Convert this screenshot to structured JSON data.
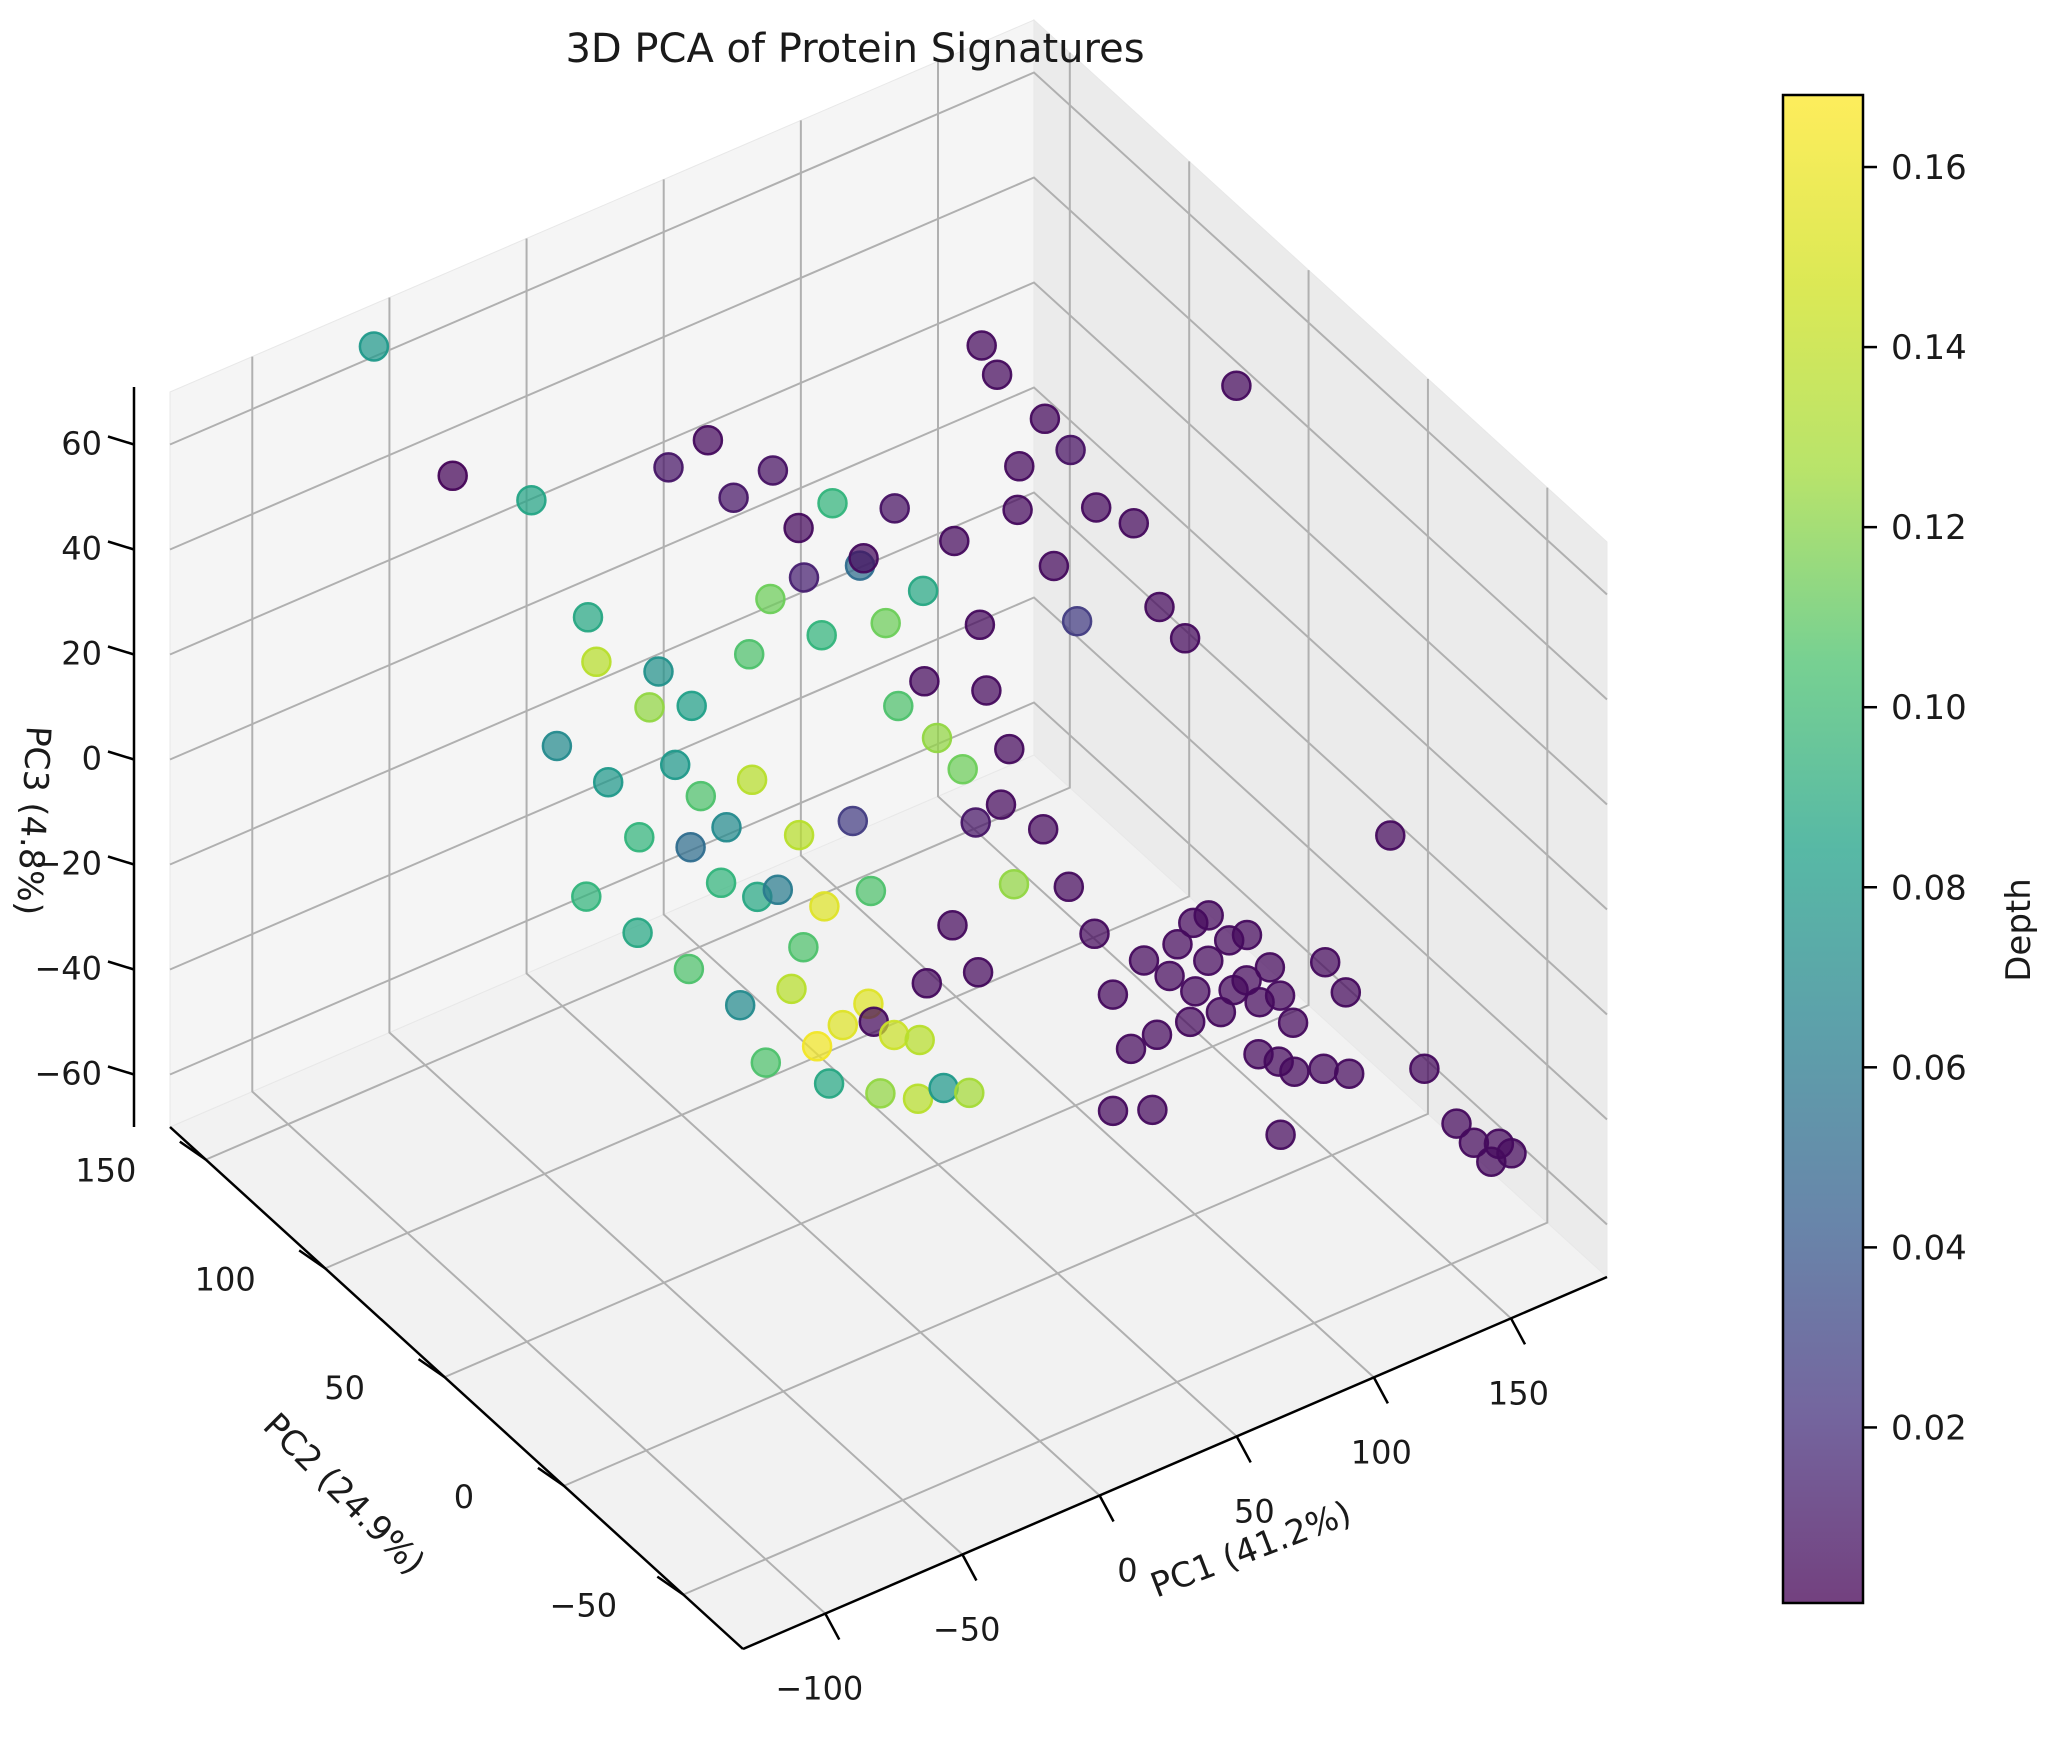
{
  "chart_data": {
    "type": "scatter3d",
    "title": "3D PCA of Protein Signatures",
    "xlabel": "PC1 (41.2%)",
    "ylabel": "PC2 (24.9%)",
    "zlabel": "PC3 (4.8%)",
    "colorbar_label": "Depth",
    "colormap": "viridis",
    "grid": true,
    "xlim": [
      -130,
      185
    ],
    "ylim": [
      -75,
      165
    ],
    "zlim": [
      -70,
      70
    ],
    "clim": [
      0.0005,
      0.168
    ],
    "x_ticks": [
      "−100",
      "−50",
      "0",
      "50",
      "100",
      "150"
    ],
    "y_ticks": [
      "−50",
      "0",
      "50",
      "100",
      "150"
    ],
    "z_ticks": [
      "−60",
      "−40",
      "−20",
      "0",
      "20",
      "40",
      "60"
    ],
    "colorbar_ticks": [
      "0.02",
      "0.04",
      "0.06",
      "0.08",
      "0.10",
      "0.12",
      "0.14",
      "0.16"
    ],
    "points": [
      {
        "x": -60,
        "y": 160,
        "z": 65,
        "c": 0.09
      },
      {
        "x": -40,
        "y": 150,
        "z": 40,
        "c": 0.002
      },
      {
        "x": -20,
        "y": 140,
        "z": 35,
        "c": 0.098
      },
      {
        "x": 5,
        "y": 145,
        "z": 5,
        "c": 0.1
      },
      {
        "x": -5,
        "y": 130,
        "z": 5,
        "c": 0.15
      },
      {
        "x": 10,
        "y": 125,
        "z": -5,
        "c": 0.14
      },
      {
        "x": 15,
        "y": 120,
        "z": -15,
        "c": 0.09
      },
      {
        "x": 20,
        "y": 115,
        "z": -20,
        "c": 0.12
      },
      {
        "x": 25,
        "y": 110,
        "z": -25,
        "c": 0.08
      },
      {
        "x": 30,
        "y": 105,
        "z": -15,
        "c": 0.15
      },
      {
        "x": 35,
        "y": 100,
        "z": -35,
        "c": 0.07
      },
      {
        "x": 40,
        "y": 95,
        "z": -45,
        "c": 0.12
      },
      {
        "x": 0,
        "y": 140,
        "z": -45,
        "c": 0.11
      },
      {
        "x": 10,
        "y": 130,
        "z": -50,
        "c": 0.1
      },
      {
        "x": 20,
        "y": 120,
        "z": -55,
        "c": 0.12
      },
      {
        "x": 30,
        "y": 110,
        "z": -60,
        "c": 0.08
      },
      {
        "x": 40,
        "y": 100,
        "z": -55,
        "c": 0.15
      },
      {
        "x": 50,
        "y": 90,
        "z": -60,
        "c": 0.16
      },
      {
        "x": 45,
        "y": 95,
        "z": -65,
        "c": 0.165
      },
      {
        "x": 55,
        "y": 85,
        "z": -55,
        "c": 0.16
      },
      {
        "x": 60,
        "y": 80,
        "z": -60,
        "c": 0.155
      },
      {
        "x": 65,
        "y": 75,
        "z": -60,
        "c": 0.15
      },
      {
        "x": 35,
        "y": 105,
        "z": -70,
        "c": 0.12
      },
      {
        "x": 45,
        "y": 90,
        "z": -70,
        "c": 0.1
      },
      {
        "x": 55,
        "y": 80,
        "z": -70,
        "c": 0.14
      },
      {
        "x": 60,
        "y": 70,
        "z": -68,
        "c": 0.15
      },
      {
        "x": 65,
        "y": 65,
        "z": -65,
        "c": 0.09
      },
      {
        "x": 70,
        "y": 60,
        "z": -65,
        "c": 0.145
      },
      {
        "x": 25,
        "y": 125,
        "z": -35,
        "c": 0.06
      },
      {
        "x": 30,
        "y": 118,
        "z": -40,
        "c": 0.11
      },
      {
        "x": 38,
        "y": 112,
        "z": -42,
        "c": 0.1
      },
      {
        "x": 48,
        "y": 106,
        "z": -30,
        "c": 0.15
      },
      {
        "x": 52,
        "y": 100,
        "z": -42,
        "c": 0.16
      },
      {
        "x": 58,
        "y": 95,
        "z": -25,
        "c": 0.03
      },
      {
        "x": 62,
        "y": 92,
        "z": -38,
        "c": 0.12
      },
      {
        "x": 15,
        "y": 135,
        "z": -35,
        "c": 0.11
      },
      {
        "x": 8,
        "y": 140,
        "z": -25,
        "c": 0.09
      },
      {
        "x": -2,
        "y": 150,
        "z": -20,
        "c": 0.08
      },
      {
        "x": 28,
        "y": 128,
        "z": -10,
        "c": 0.095
      },
      {
        "x": 22,
        "y": 135,
        "z": -5,
        "c": 0.085
      },
      {
        "x": 42,
        "y": 120,
        "z": 0,
        "c": 0.12
      },
      {
        "x": 48,
        "y": 118,
        "z": 10,
        "c": 0.13
      },
      {
        "x": 55,
        "y": 112,
        "z": 15,
        "c": 0.015
      },
      {
        "x": 58,
        "y": 108,
        "z": 5,
        "c": 0.11
      },
      {
        "x": 65,
        "y": 100,
        "z": 20,
        "c": 0.06
      },
      {
        "x": 70,
        "y": 95,
        "z": 10,
        "c": 0.13
      },
      {
        "x": 72,
        "y": 92,
        "z": -5,
        "c": 0.12
      },
      {
        "x": 78,
        "y": 88,
        "z": 0,
        "c": 0.005
      },
      {
        "x": 80,
        "y": 85,
        "z": -10,
        "c": 0.14
      },
      {
        "x": 85,
        "y": 80,
        "z": -15,
        "c": 0.13
      },
      {
        "x": 88,
        "y": 78,
        "z": -25,
        "c": 0.01
      },
      {
        "x": 92,
        "y": 72,
        "z": -20,
        "c": 0.005
      },
      {
        "x": 95,
        "y": 70,
        "z": -35,
        "c": 0.14
      },
      {
        "x": 30,
        "y": 140,
        "z": 30,
        "c": 0.01
      },
      {
        "x": 40,
        "y": 135,
        "z": 35,
        "c": 0.005
      },
      {
        "x": 45,
        "y": 130,
        "z": 25,
        "c": 0.01
      },
      {
        "x": 55,
        "y": 125,
        "z": 30,
        "c": 0.008
      },
      {
        "x": 60,
        "y": 120,
        "z": 20,
        "c": 0.005
      },
      {
        "x": 68,
        "y": 115,
        "z": 25,
        "c": 0.11
      },
      {
        "x": 75,
        "y": 110,
        "z": 15,
        "c": 0.005
      },
      {
        "x": 82,
        "y": 105,
        "z": 25,
        "c": 0.008
      },
      {
        "x": 88,
        "y": 100,
        "z": 10,
        "c": 0.1
      },
      {
        "x": 95,
        "y": 95,
        "z": 20,
        "c": 0.005
      },
      {
        "x": 100,
        "y": 90,
        "z": 5,
        "c": 0.005
      },
      {
        "x": 110,
        "y": 85,
        "z": 35,
        "c": 0.005
      },
      {
        "x": 115,
        "y": 80,
        "z": 45,
        "c": 0.005
      },
      {
        "x": 120,
        "y": 75,
        "z": 40,
        "c": 0.008
      },
      {
        "x": 125,
        "y": 70,
        "z": 30,
        "c": 0.005
      },
      {
        "x": 130,
        "y": 60,
        "z": 30,
        "c": 0.005
      },
      {
        "x": 135,
        "y": 55,
        "z": 15,
        "c": 0.005
      },
      {
        "x": 140,
        "y": 50,
        "z": 10,
        "c": 0.005
      },
      {
        "x": 150,
        "y": 40,
        "z": 60,
        "c": 0.005
      },
      {
        "x": 105,
        "y": 95,
        "z": 55,
        "c": 0.005
      },
      {
        "x": 108,
        "y": 92,
        "z": 50,
        "c": 0.005
      },
      {
        "x": 112,
        "y": 88,
        "z": 25,
        "c": 0.005
      },
      {
        "x": 120,
        "y": 82,
        "z": 15,
        "c": 0.005
      },
      {
        "x": 125,
        "y": 78,
        "z": 5,
        "c": 0.03
      },
      {
        "x": 98,
        "y": 85,
        "z": -5,
        "c": 0.005
      },
      {
        "x": 102,
        "y": 80,
        "z": -15,
        "c": 0.005
      },
      {
        "x": 110,
        "y": 75,
        "z": -30,
        "c": 0.005
      },
      {
        "x": 115,
        "y": 70,
        "z": -40,
        "c": 0.005
      },
      {
        "x": 120,
        "y": 65,
        "z": -48,
        "c": 0.005
      },
      {
        "x": 118,
        "y": 55,
        "z": -55,
        "c": 0.005
      },
      {
        "x": 125,
        "y": 50,
        "z": -48,
        "c": 0.005
      },
      {
        "x": 130,
        "y": 45,
        "z": -50,
        "c": 0.005
      },
      {
        "x": 135,
        "y": 40,
        "z": -52,
        "c": 0.005
      },
      {
        "x": 138,
        "y": 38,
        "z": -46,
        "c": 0.005
      },
      {
        "x": 140,
        "y": 35,
        "z": -55,
        "c": 0.005
      },
      {
        "x": 142,
        "y": 32,
        "z": -50,
        "c": 0.005
      },
      {
        "x": 145,
        "y": 30,
        "z": -48,
        "c": 0.005
      },
      {
        "x": 148,
        "y": 28,
        "z": -52,
        "c": 0.005
      },
      {
        "x": 150,
        "y": 26,
        "z": -45,
        "c": 0.005
      },
      {
        "x": 152,
        "y": 24,
        "z": -50,
        "c": 0.005
      },
      {
        "x": 155,
        "y": 22,
        "z": -55,
        "c": 0.005
      },
      {
        "x": 136,
        "y": 42,
        "z": -40,
        "c": 0.005
      },
      {
        "x": 139,
        "y": 39,
        "z": -38,
        "c": 0.005
      },
      {
        "x": 143,
        "y": 35,
        "z": -42,
        "c": 0.005
      },
      {
        "x": 146,
        "y": 31,
        "z": -40,
        "c": 0.005
      },
      {
        "x": 132,
        "y": 44,
        "z": -44,
        "c": 0.005
      },
      {
        "x": 134,
        "y": 41,
        "z": -58,
        "c": 0.005
      },
      {
        "x": 148,
        "y": 20,
        "z": -60,
        "c": 0.005
      },
      {
        "x": 152,
        "y": 18,
        "z": -62,
        "c": 0.005
      },
      {
        "x": 145,
        "y": 25,
        "z": -60,
        "c": 0.005
      },
      {
        "x": 128,
        "y": 48,
        "z": -62,
        "c": 0.005
      },
      {
        "x": 122,
        "y": 52,
        "z": -65,
        "c": 0.005
      },
      {
        "x": 160,
        "y": 15,
        "z": -62,
        "c": 0.005
      },
      {
        "x": 165,
        "y": 10,
        "z": -62,
        "c": 0.005
      },
      {
        "x": 158,
        "y": 12,
        "z": -40,
        "c": 0.005
      },
      {
        "x": 162,
        "y": 8,
        "z": -45,
        "c": 0.005
      },
      {
        "x": 105,
        "y": 40,
        "z": -68,
        "c": 0.005
      },
      {
        "x": 115,
        "y": 35,
        "z": -68,
        "c": 0.005
      },
      {
        "x": 140,
        "y": 10,
        "z": -68,
        "c": 0.005
      },
      {
        "x": 175,
        "y": -10,
        "z": -55,
        "c": 0.005
      },
      {
        "x": 178,
        "y": -20,
        "z": -62,
        "c": 0.005
      },
      {
        "x": 180,
        "y": -25,
        "z": -64,
        "c": 0.005
      },
      {
        "x": 182,
        "y": -30,
        "z": -66,
        "c": 0.005
      },
      {
        "x": 183,
        "y": -32,
        "z": -62,
        "c": 0.005
      },
      {
        "x": 185,
        "y": -35,
        "z": -63,
        "c": 0.005
      },
      {
        "x": 180,
        "y": 10,
        "z": -20,
        "c": 0.005
      },
      {
        "x": 90,
        "y": 90,
        "z": -50,
        "c": 0.005
      },
      {
        "x": 95,
        "y": 85,
        "z": -58,
        "c": 0.005
      },
      {
        "x": 85,
        "y": 95,
        "z": -62,
        "c": 0.005
      },
      {
        "x": 70,
        "y": 100,
        "z": -68,
        "c": 0.005
      }
    ]
  }
}
